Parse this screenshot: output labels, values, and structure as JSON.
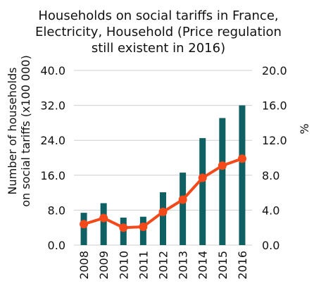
{
  "chart_data": {
    "type": "bar",
    "title_lines": [
      "Households on social tariffs in France,",
      "Electricity, Household (Price regulation",
      "still existent in 2016)"
    ],
    "categories": [
      "2008",
      "2009",
      "2010",
      "2011",
      "2012",
      "2013",
      "2014",
      "2015",
      "2016"
    ],
    "series": [
      {
        "axis": "left",
        "type": "bar",
        "color": "#0f6062",
        "values": [
          7.4,
          9.6,
          6.3,
          6.5,
          12.1,
          16.6,
          24.5,
          29.1,
          32.0
        ]
      },
      {
        "axis": "right",
        "type": "line",
        "color": "#f44a1b",
        "values": [
          2.4,
          3.1,
          2.0,
          2.1,
          3.8,
          5.2,
          7.7,
          9.1,
          9.9
        ]
      }
    ],
    "ylabel_left": "Number of households on social tariffs (x100 000)",
    "ylabel_left_lines": [
      "Number of households",
      "on social tariffs (x100 000)"
    ],
    "ylabel_right": "%",
    "ylim_left": [
      0,
      40
    ],
    "ylim_right": [
      0,
      20
    ],
    "yticks_left": [
      "0.0",
      "8.0",
      "16.0",
      "24.0",
      "32.0",
      "40.0"
    ],
    "yticks_right": [
      "0.0",
      "4.0",
      "8.0",
      "12.0",
      "16.0",
      "20.0"
    ],
    "grid": true,
    "legend": "none"
  }
}
